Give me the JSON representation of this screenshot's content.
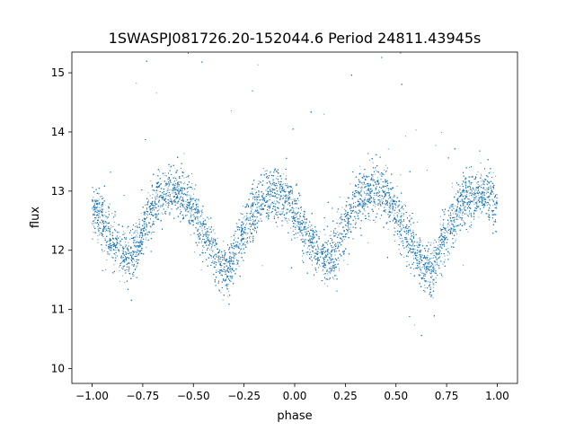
{
  "chart_data": {
    "type": "scatter",
    "title": "1SWASPJ081726.20-152044.6 Period 24811.43945s",
    "xlabel": "phase",
    "ylabel": "flux",
    "xlim": [
      -1.1,
      1.1
    ],
    "ylim": [
      9.75,
      15.35
    ],
    "x_ticks": [
      -1.0,
      -0.75,
      -0.5,
      -0.25,
      0.0,
      0.25,
      0.5,
      0.75,
      1.0
    ],
    "x_tick_labels": [
      "−1.00",
      "−0.75",
      "−0.50",
      "−0.25",
      "0.00",
      "0.25",
      "0.50",
      "0.75",
      "1.00"
    ],
    "y_ticks": [
      10,
      11,
      12,
      13,
      14,
      15
    ],
    "y_tick_labels": [
      "10",
      "11",
      "12",
      "13",
      "14",
      "15"
    ],
    "grid": false,
    "marker_color": "#1f77b4",
    "series": [
      {
        "description_values": "phase-folded light curve, repeated twice over phase -1 to 1",
        "curve": {
          "x": [
            -1.0,
            -0.95,
            -0.9,
            -0.85,
            -0.82,
            -0.78,
            -0.75,
            -0.7,
            -0.65,
            -0.6,
            -0.55,
            -0.5,
            -0.45,
            -0.4,
            -0.36,
            -0.33,
            -0.3,
            -0.25,
            -0.2,
            -0.15,
            -0.1,
            -0.05,
            0.0,
            0.05,
            0.1,
            0.15,
            0.18,
            0.22,
            0.25,
            0.3,
            0.35,
            0.4,
            0.45,
            0.5,
            0.55,
            0.6,
            0.64,
            0.67,
            0.7,
            0.75,
            0.8,
            0.85,
            0.9,
            0.95,
            1.0
          ],
          "y": [
            12.7,
            12.5,
            12.2,
            11.95,
            11.85,
            12.0,
            12.35,
            12.75,
            12.95,
            13.05,
            12.95,
            12.65,
            12.3,
            11.95,
            11.7,
            11.65,
            11.85,
            12.3,
            12.65,
            12.85,
            12.95,
            12.9,
            12.65,
            12.3,
            12.0,
            11.85,
            11.9,
            12.1,
            12.4,
            12.8,
            13.0,
            13.05,
            12.95,
            12.65,
            12.3,
            11.95,
            11.7,
            11.65,
            11.85,
            12.3,
            12.65,
            12.85,
            12.95,
            12.95,
            12.75
          ]
        },
        "scatter_sigma": 0.22,
        "point_count": 15000
      }
    ]
  }
}
